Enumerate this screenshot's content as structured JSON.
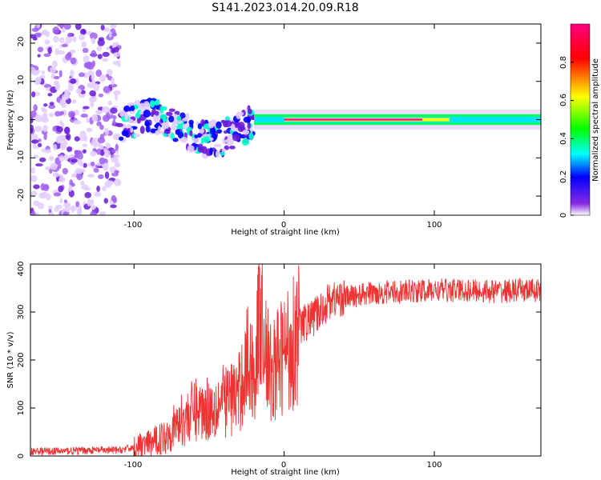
{
  "figure": {
    "title": "S141.2023.014.20.09.R18"
  },
  "colors": {
    "snr_line": "#ee3333",
    "axes": "#000000",
    "background": "#ffffff"
  },
  "chart_data": [
    {
      "type": "heatmap",
      "name": "spectrogram",
      "xlabel": "Height of straight line (km)",
      "ylabel": "Frequency (Hz)",
      "xlim": [
        -169,
        171
      ],
      "ylim": [
        -25,
        25
      ],
      "xticks": [
        -100,
        0,
        100
      ],
      "yticks": [
        -20,
        -10,
        0,
        10,
        20
      ],
      "grid": false,
      "colormap": [
        "#ffffff",
        "#d9b3ff",
        "#8a2be2",
        "#0000ff",
        "#00ffff",
        "#00ff00",
        "#ffff00",
        "#ff0000",
        "#ff00aa"
      ],
      "colorbar": {
        "label": "Normalized spectral amplitude",
        "range": [
          0,
          1
        ],
        "ticks": [
          0.0,
          0.2,
          0.4,
          0.6,
          0.8
        ]
      },
      "regions": [
        {
          "description": "noise",
          "x_range": [
            -169,
            -110
          ],
          "freq_range": [
            -25,
            25
          ],
          "amplitude": 0.1
        },
        {
          "description": "scattered echoes",
          "x_range": [
            -110,
            -20
          ],
          "freq_range": [
            -10,
            8
          ],
          "amplitude": 0.3
        },
        {
          "description": "narrow tone",
          "x_range": [
            -20,
            171
          ],
          "freq_center": 0,
          "freq_halfwidth": 1,
          "amplitude_peak": 0.95
        }
      ]
    },
    {
      "type": "line",
      "name": "snr",
      "xlabel": "Height of straight line (km)",
      "ylabel": "SNR (10 * v/v)",
      "xlim": [
        -169,
        171
      ],
      "ylim": [
        0,
        400
      ],
      "xticks": [
        -100,
        0,
        100
      ],
      "yticks": [
        0,
        100,
        200,
        300,
        400
      ],
      "grid": false,
      "series": [
        {
          "x": [
            -169,
            -150,
            -130,
            -110,
            -100,
            -90,
            -80,
            -70,
            -60,
            -50,
            -40,
            -30,
            -25,
            -20,
            -15,
            -10,
            -5,
            0,
            5,
            10,
            15,
            20,
            25,
            30,
            40,
            50,
            60,
            80,
            100,
            120,
            140,
            160,
            171
          ],
          "values": [
            10,
            10,
            12,
            12,
            18,
            25,
            40,
            70,
            95,
            100,
            115,
            130,
            200,
            170,
            330,
            165,
            190,
            215,
            235,
            270,
            280,
            290,
            305,
            325,
            330,
            335,
            340,
            342,
            345,
            345,
            343,
            345,
            345
          ]
        }
      ]
    }
  ]
}
